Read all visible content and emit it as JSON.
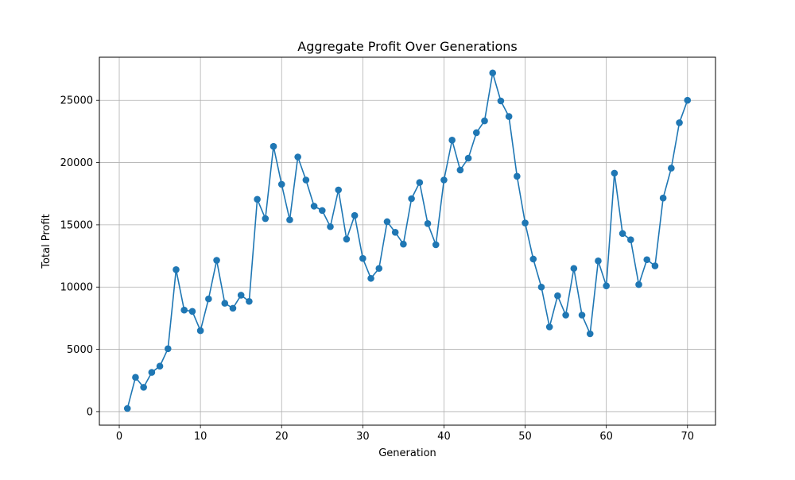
{
  "chart_data": {
    "type": "line",
    "title": "Aggregate Profit Over Generations",
    "xlabel": "Generation",
    "ylabel": "Total Profit",
    "xlim": [
      -2.45,
      73.45
    ],
    "ylim": [
      -1090,
      28460
    ],
    "xticks": [
      0,
      10,
      20,
      30,
      40,
      50,
      60,
      70
    ],
    "yticks": [
      0,
      5000,
      10000,
      15000,
      20000,
      25000
    ],
    "grid": true,
    "legend": "none",
    "marker": "circle",
    "color": "#1f77b4",
    "x": [
      1,
      2,
      3,
      4,
      5,
      6,
      7,
      8,
      9,
      10,
      11,
      12,
      13,
      14,
      15,
      16,
      17,
      18,
      19,
      20,
      21,
      22,
      23,
      24,
      25,
      26,
      27,
      28,
      29,
      30,
      31,
      32,
      33,
      34,
      35,
      36,
      37,
      38,
      39,
      40,
      41,
      42,
      43,
      44,
      45,
      46,
      47,
      48,
      49,
      50,
      51,
      52,
      53,
      54,
      55,
      56,
      57,
      58,
      59,
      60,
      61,
      62,
      63,
      64,
      65,
      66,
      67,
      68,
      69,
      70
    ],
    "y": [
      250,
      2750,
      1950,
      3150,
      3650,
      5050,
      11400,
      8150,
      8050,
      6500,
      9050,
      12150,
      8700,
      8300,
      9350,
      8850,
      17050,
      15500,
      21300,
      18250,
      15400,
      20450,
      18600,
      16500,
      16150,
      14850,
      17800,
      13850,
      15750,
      12300,
      10700,
      11500,
      15250,
      14400,
      13450,
      17100,
      18400,
      15100,
      13400,
      18600,
      21800,
      19400,
      20350,
      22400,
      23350,
      27200,
      24950,
      23700,
      18900,
      15150,
      12250,
      10000,
      6800,
      9300,
      7750,
      11500,
      7750,
      6250,
      12100,
      10100,
      19150,
      14300,
      13800,
      10200,
      12200,
      11700,
      17150,
      19550,
      23200,
      25000
    ]
  }
}
